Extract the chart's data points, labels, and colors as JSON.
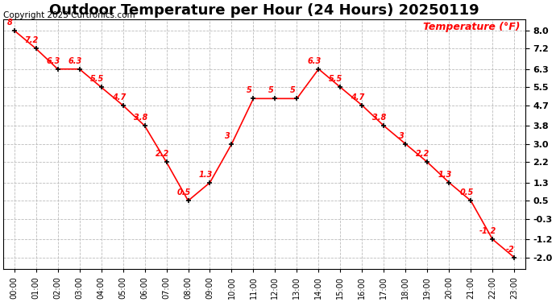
{
  "title": "Outdoor Temperature per Hour (24 Hours) 20250119",
  "copyright": "Copyright 2025 Curtronics.com",
  "ylabel_right": "Temperature (°F)",
  "hours": [
    "00:00",
    "01:00",
    "02:00",
    "03:00",
    "04:00",
    "05:00",
    "06:00",
    "07:00",
    "08:00",
    "09:00",
    "10:00",
    "11:00",
    "12:00",
    "13:00",
    "14:00",
    "15:00",
    "16:00",
    "17:00",
    "18:00",
    "19:00",
    "20:00",
    "21:00",
    "22:00",
    "23:00"
  ],
  "temperatures": [
    8.0,
    7.2,
    6.3,
    6.3,
    5.5,
    4.7,
    3.8,
    2.2,
    0.5,
    1.3,
    3.0,
    5.0,
    5.0,
    5.0,
    6.3,
    5.5,
    4.7,
    3.8,
    3.0,
    2.2,
    1.3,
    0.5,
    -1.2,
    -2.0
  ],
  "line_color": "red",
  "marker_color": "black",
  "label_color": "red",
  "yticks": [
    8.0,
    7.2,
    6.3,
    5.5,
    4.7,
    3.8,
    3.0,
    2.2,
    1.3,
    0.5,
    -0.3,
    -1.2,
    -2.0
  ],
  "ylim_min": -2.5,
  "ylim_max": 8.5,
  "bg_color": "white",
  "plot_bg_color": "white",
  "grid_color": "#bbbbbb",
  "title_fontsize": 13,
  "label_fontsize": 7,
  "copyright_fontsize": 7.5
}
